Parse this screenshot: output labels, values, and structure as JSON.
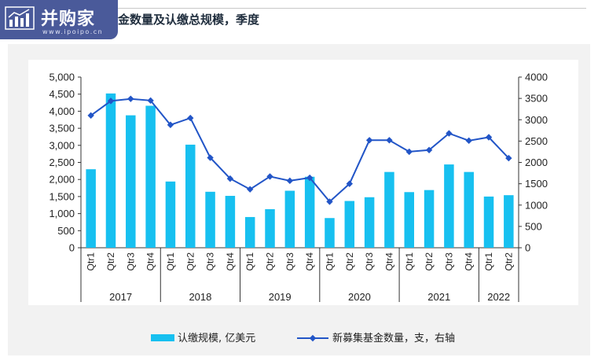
{
  "header": {
    "title": "金数量及认缴总规模，季度"
  },
  "logo": {
    "name": "并购家",
    "url": "www.ipoipo.cn",
    "icon": "bar-chart-icon"
  },
  "colors": {
    "bar": "#17c0f0",
    "line": "#2255c7",
    "panel": "#f2f2f2",
    "logo_bg": "#4a5a9a"
  },
  "chart_data": {
    "type": "bar",
    "title": "",
    "categories": [
      "Qtr1",
      "Qtr2",
      "Qtr3",
      "Qtr4",
      "Qtr1",
      "Qtr2",
      "Qtr3",
      "Qtr4",
      "Qtr1",
      "Qtr2",
      "Qtr3",
      "Qtr4",
      "Qtr1",
      "Qtr2",
      "Qtr3",
      "Qtr4",
      "Qtr1",
      "Qtr2",
      "Qtr3",
      "Qtr4",
      "Qtr1",
      "Qtr2"
    ],
    "groups": [
      {
        "label": "2017",
        "count": 4
      },
      {
        "label": "2018",
        "count": 4
      },
      {
        "label": "2019",
        "count": 4
      },
      {
        "label": "2020",
        "count": 4
      },
      {
        "label": "2021",
        "count": 4
      },
      {
        "label": "2022",
        "count": 2
      }
    ],
    "series": [
      {
        "name": "认缴规模, 亿美元",
        "type": "bar",
        "axis": "left",
        "values": [
          2300,
          4520,
          3880,
          4160,
          1940,
          3020,
          1640,
          1520,
          900,
          1130,
          1670,
          2080,
          870,
          1370,
          1480,
          2220,
          1630,
          1690,
          2440,
          2220,
          1500,
          1540
        ]
      },
      {
        "name": "新募集基金数量，支，右轴",
        "type": "line",
        "axis": "right",
        "values": [
          3100,
          3440,
          3490,
          3450,
          2880,
          3040,
          2110,
          1620,
          1370,
          1670,
          1570,
          1640,
          1080,
          1500,
          2520,
          2520,
          2250,
          2290,
          2680,
          2510,
          2590,
          2100
        ]
      }
    ],
    "y_left": {
      "min": 0,
      "max": 5000,
      "step": 500,
      "tick_labels": [
        "0",
        "500",
        "1,000",
        "1,500",
        "2,000",
        "2,500",
        "3,000",
        "3,500",
        "4,000",
        "4,500",
        "5,000"
      ]
    },
    "y_right": {
      "min": 0,
      "max": 4000,
      "step": 500,
      "tick_labels": [
        "0",
        "500",
        "1000",
        "1500",
        "2000",
        "2500",
        "3000",
        "3500",
        "4000"
      ]
    },
    "grid": false,
    "legend_position": "bottom"
  }
}
